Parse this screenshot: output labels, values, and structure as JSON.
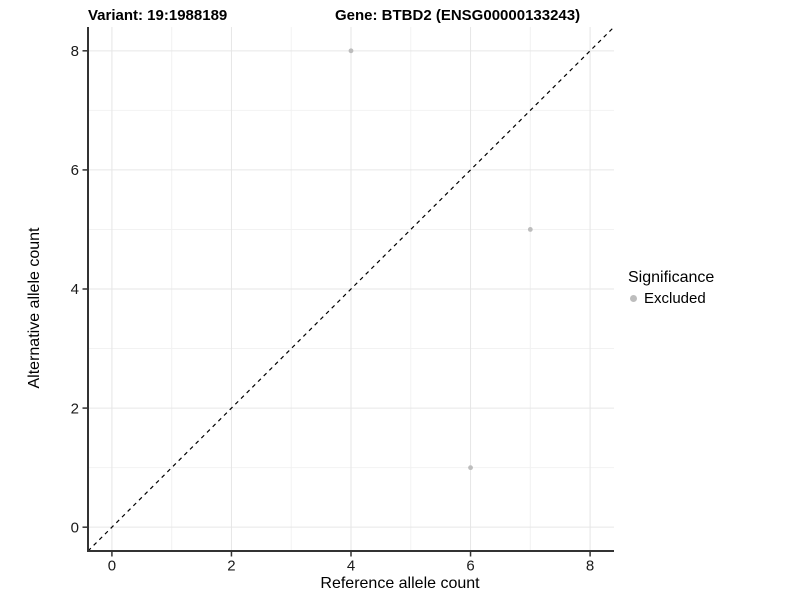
{
  "legend": {
    "title": "Significance",
    "items": [
      {
        "label": "Excluded",
        "color": "#bdbdbd"
      }
    ]
  },
  "chart_data": {
    "type": "scatter",
    "title_left": "Variant: 19:1988189",
    "title_right": "Gene: BTBD2 (ENSG00000133243)",
    "xlabel": "Reference allele count",
    "ylabel": "Alternative allele count",
    "xlim": [
      -0.4,
      8.4
    ],
    "ylim": [
      -0.4,
      8.4
    ],
    "x_major_ticks": [
      0,
      2,
      4,
      6,
      8
    ],
    "y_major_ticks": [
      0,
      2,
      4,
      6,
      8
    ],
    "x_minor_ticks": [
      1,
      3,
      5,
      7
    ],
    "y_minor_ticks": [
      1,
      3,
      5,
      7
    ],
    "grid": true,
    "legend_position": "right",
    "reference_line": {
      "type": "identity",
      "style": "dashed",
      "color": "#000000"
    },
    "series": [
      {
        "name": "Excluded",
        "color": "#bdbdbd",
        "points": [
          {
            "x": 4,
            "y": 8
          },
          {
            "x": 7,
            "y": 5
          },
          {
            "x": 6,
            "y": 1
          }
        ]
      }
    ],
    "point_radius": 2.4,
    "colors": {
      "grid_major": "#e6e6e6",
      "grid_minor": "#f2f2f2",
      "axis_line": "#333333",
      "tick": "#333333",
      "tick_label": "#1a1a1a"
    }
  }
}
